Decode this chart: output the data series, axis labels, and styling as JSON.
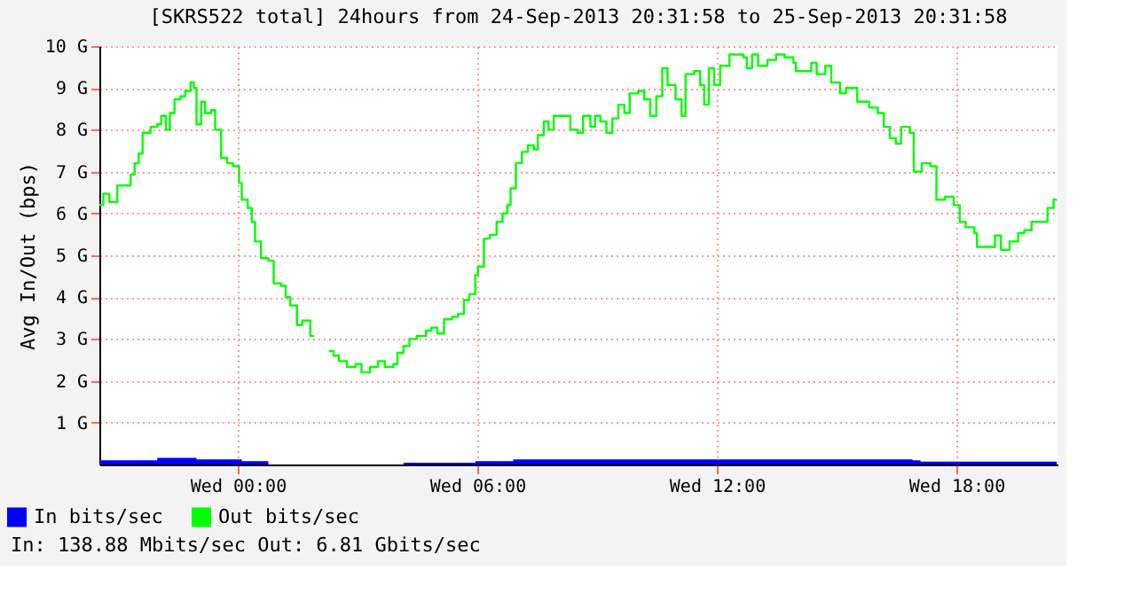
{
  "chart_data": {
    "type": "step",
    "title": "[SKRS522 total] 24hours from 24-Sep-2013 20:31:58 to 25-Sep-2013 20:31:58",
    "ylabel": "Avg In/Out (bps)",
    "xlim": [
      "2013-09-24T20:32",
      "2013-09-25T20:32"
    ],
    "xticks": [
      {
        "value": "2013-09-25T00:00",
        "label": "Wed 00:00"
      },
      {
        "value": "2013-09-25T06:00",
        "label": "Wed 06:00"
      },
      {
        "value": "2013-09-25T12:00",
        "label": "Wed 12:00"
      },
      {
        "value": "2013-09-25T18:00",
        "label": "Wed 18:00"
      }
    ],
    "ylim": [
      0,
      10
    ],
    "yticks": [
      {
        "value": 1,
        "label": "1 G"
      },
      {
        "value": 2,
        "label": "2 G"
      },
      {
        "value": 3,
        "label": "3 G"
      },
      {
        "value": 4,
        "label": "4 G"
      },
      {
        "value": 5,
        "label": "5 G"
      },
      {
        "value": 6,
        "label": "6 G"
      },
      {
        "value": 7,
        "label": "7 G"
      },
      {
        "value": 8,
        "label": "8 G"
      },
      {
        "value": 9,
        "label": "9 G"
      },
      {
        "value": 10,
        "label": "10 G"
      }
    ],
    "grid": true,
    "legend": "bottom left",
    "annotations": [
      "In: 138.88 Mbits/sec   Out: 6.81 Gbits/sec"
    ],
    "series": [
      {
        "name": "In bits/sec",
        "type": "area",
        "color": "#0000ff",
        "x": [
          "2013-09-24T20:32",
          "2013-09-24T21:59",
          "2013-09-24T22:58",
          "2013-09-25T00:06",
          "2013-09-25T00:46",
          "2013-09-25T01:55",
          "2013-09-25T04:09",
          "2013-09-25T05:57",
          "2013-09-25T06:54",
          "2013-09-25T16:54",
          "2013-09-25T17:06",
          "2013-09-25T20:31"
        ],
        "values": [
          0.1,
          0.16,
          0.12,
          0.08,
          0.04,
          null,
          0.04,
          0.08,
          0.12,
          0.1,
          0.07,
          0.1
        ]
      },
      {
        "name": "Out bits/sec",
        "color": "#00ff00",
        "x": [
          "2013-09-24T20:32",
          "2013-09-24T20:38",
          "2013-09-24T20:47",
          "2013-09-24T20:59",
          "2013-09-24T21:13",
          "2013-09-24T21:19",
          "2013-09-24T21:25",
          "2013-09-24T21:31",
          "2013-09-24T21:37",
          "2013-09-24T21:49",
          "2013-09-24T21:59",
          "2013-09-24T22:05",
          "2013-09-24T22:12",
          "2013-09-24T22:18",
          "2013-09-24T22:25",
          "2013-09-24T22:34",
          "2013-09-24T22:41",
          "2013-09-24T22:49",
          "2013-09-24T22:54",
          "2013-09-24T22:58",
          "2013-09-24T23:05",
          "2013-09-24T23:11",
          "2013-09-24T23:20",
          "2013-09-24T23:26",
          "2013-09-24T23:35",
          "2013-09-24T23:44",
          "2013-09-24T23:53",
          "2013-09-25T00:02",
          "2013-09-25T00:06",
          "2013-09-25T00:15",
          "2013-09-25T00:21",
          "2013-09-25T00:26",
          "2013-09-25T00:35",
          "2013-09-25T00:46",
          "2013-09-25T00:54",
          "2013-09-25T01:05",
          "2013-09-25T01:12",
          "2013-09-25T01:19",
          "2013-09-25T01:29",
          "2013-09-25T01:37",
          "2013-09-25T01:49",
          "2013-09-25T01:55",
          "2013-09-25T02:00",
          "2013-09-25T02:17",
          "2013-09-25T02:24",
          "2013-09-25T02:32",
          "2013-09-25T02:44",
          "2013-09-25T02:57",
          "2013-09-25T03:06",
          "2013-09-25T03:19",
          "2013-09-25T03:31",
          "2013-09-25T03:41",
          "2013-09-25T03:54",
          "2013-09-25T04:00",
          "2013-09-25T04:09",
          "2013-09-25T04:18",
          "2013-09-25T04:29",
          "2013-09-25T04:43",
          "2013-09-25T04:51",
          "2013-09-25T05:00",
          "2013-09-25T05:10",
          "2013-09-25T05:22",
          "2013-09-25T05:31",
          "2013-09-25T05:40",
          "2013-09-25T05:48",
          "2013-09-25T05:57",
          "2013-09-25T06:01",
          "2013-09-25T06:10",
          "2013-09-25T06:19",
          "2013-09-25T06:29",
          "2013-09-25T06:38",
          "2013-09-25T06:45",
          "2013-09-25T06:50",
          "2013-09-25T06:58",
          "2013-09-25T07:07",
          "2013-09-25T07:16",
          "2013-09-25T07:25",
          "2013-09-25T07:31",
          "2013-09-25T07:40",
          "2013-09-25T07:47",
          "2013-09-25T07:55",
          "2013-09-25T08:13",
          "2013-09-25T08:20",
          "2013-09-25T08:31",
          "2013-09-25T08:39",
          "2013-09-25T08:50",
          "2013-09-25T08:57",
          "2013-09-25T09:05",
          "2013-09-25T09:14",
          "2013-09-25T09:23",
          "2013-09-25T09:32",
          "2013-09-25T09:41",
          "2013-09-25T09:49",
          "2013-09-25T10:02",
          "2013-09-25T10:11",
          "2013-09-25T10:20",
          "2013-09-25T10:29",
          "2013-09-25T10:38",
          "2013-09-25T10:46",
          "2013-09-25T10:58",
          "2013-09-25T11:07",
          "2013-09-25T11:13",
          "2013-09-25T11:26",
          "2013-09-25T11:35",
          "2013-09-25T11:41",
          "2013-09-25T11:48",
          "2013-09-25T11:56",
          "2013-09-25T12:05",
          "2013-09-25T12:19",
          "2013-09-25T12:40",
          "2013-09-25T12:45",
          "2013-09-25T12:53",
          "2013-09-25T13:02",
          "2013-09-25T13:16",
          "2013-09-25T13:29",
          "2013-09-25T13:42",
          "2013-09-25T13:55",
          "2013-09-25T13:59",
          "2013-09-25T14:22",
          "2013-09-25T14:30",
          "2013-09-25T14:43",
          "2013-09-25T14:52",
          "2013-09-25T15:05",
          "2013-09-25T15:14",
          "2013-09-25T15:31",
          "2013-09-25T15:49",
          "2013-09-25T16:02",
          "2013-09-25T16:11",
          "2013-09-25T16:20",
          "2013-09-25T16:29",
          "2013-09-25T16:37",
          "2013-09-25T16:50",
          "2013-09-25T16:56",
          "2013-09-25T17:08",
          "2013-09-25T17:21",
          "2013-09-25T17:30",
          "2013-09-25T17:43",
          "2013-09-25T17:56",
          "2013-09-25T18:05",
          "2013-09-25T18:14",
          "2013-09-25T18:27",
          "2013-09-25T18:31",
          "2013-09-25T18:44",
          "2013-09-25T18:58",
          "2013-09-25T19:07",
          "2013-09-25T19:20",
          "2013-09-25T19:33",
          "2013-09-25T19:42",
          "2013-09-25T19:53",
          "2013-09-25T20:04",
          "2013-09-25T20:17",
          "2013-09-25T20:26",
          "2013-09-25T20:31"
        ],
        "values": [
          6.2,
          6.47,
          6.27,
          6.67,
          6.67,
          6.93,
          7.2,
          7.43,
          7.93,
          8.07,
          8.13,
          8.33,
          8.0,
          8.4,
          8.73,
          8.8,
          8.93,
          9.13,
          9.0,
          8.13,
          8.67,
          8.4,
          8.47,
          8.0,
          7.33,
          7.2,
          7.13,
          6.73,
          6.33,
          6.13,
          5.8,
          5.33,
          4.93,
          4.87,
          4.33,
          4.27,
          4.0,
          3.8,
          3.33,
          3.44,
          3.07,
          3.07,
          null,
          2.71,
          2.6,
          2.47,
          2.33,
          2.4,
          2.2,
          2.33,
          2.47,
          2.33,
          2.4,
          2.67,
          2.83,
          3.0,
          3.07,
          3.2,
          3.27,
          3.13,
          3.47,
          3.53,
          3.6,
          3.93,
          4.07,
          4.53,
          4.73,
          5.4,
          5.49,
          5.8,
          6.0,
          6.2,
          6.6,
          7.2,
          7.47,
          7.63,
          7.53,
          7.87,
          8.2,
          8.0,
          8.33,
          8.33,
          8.0,
          7.93,
          8.33,
          8.07,
          8.33,
          8.2,
          7.93,
          8.27,
          8.6,
          8.4,
          8.87,
          8.93,
          8.73,
          8.33,
          8.8,
          9.47,
          9.07,
          8.73,
          8.33,
          9.33,
          9.4,
          9.07,
          8.6,
          9.47,
          9.07,
          9.53,
          9.8,
          9.73,
          9.47,
          9.8,
          9.53,
          9.67,
          9.8,
          9.73,
          9.6,
          9.4,
          9.6,
          9.33,
          9.53,
          9.13,
          8.87,
          9.0,
          8.67,
          8.53,
          8.4,
          8.07,
          7.8,
          7.67,
          8.07,
          7.93,
          7.0,
          7.2,
          7.13,
          6.33,
          6.4,
          6.2,
          5.8,
          5.67,
          5.53,
          5.2,
          5.2,
          5.47,
          5.13,
          5.33,
          5.53,
          5.6,
          5.8,
          5.8,
          6.13,
          6.33,
          6.33
        ]
      }
    ]
  }
}
